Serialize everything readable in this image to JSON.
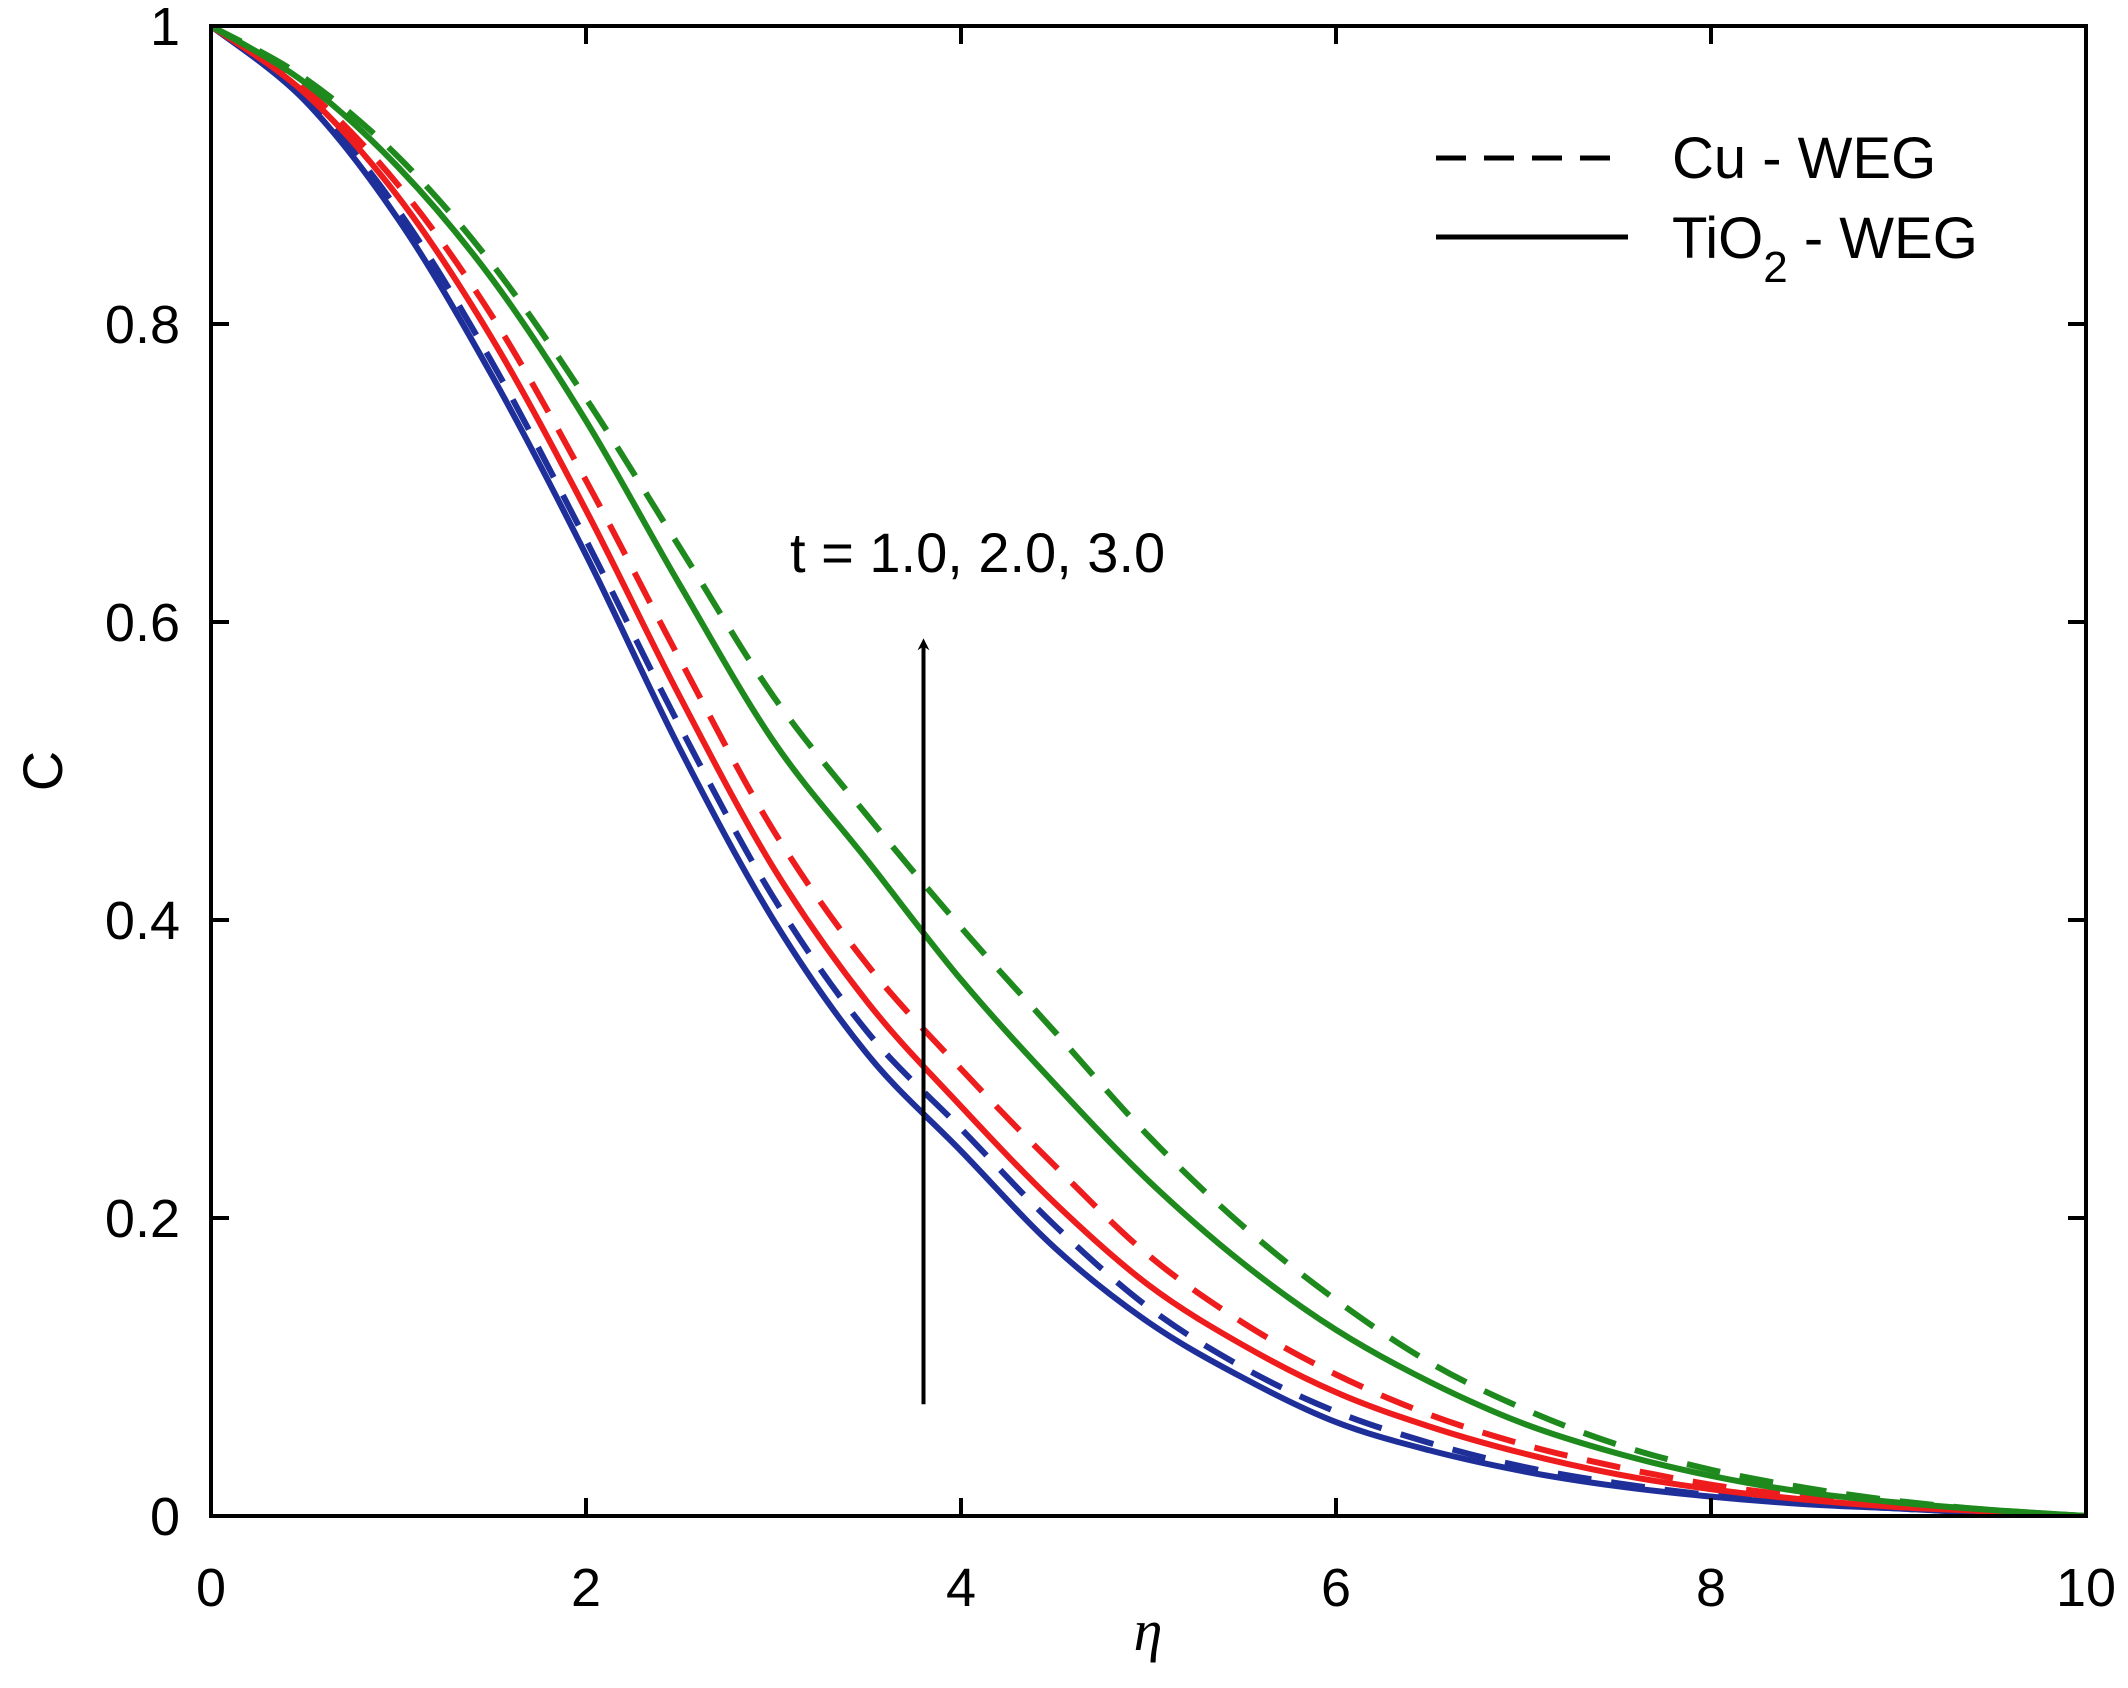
{
  "chart_data": {
    "type": "line",
    "xlabel": "η",
    "ylabel": "C",
    "xlim": [
      0,
      10
    ],
    "ylim": [
      0,
      1
    ],
    "xticks": [
      "0",
      "2",
      "4",
      "6",
      "8",
      "10"
    ],
    "yticks": [
      "0",
      "0.2",
      "0.4",
      "0.6",
      "0.8",
      "1"
    ],
    "grid": false,
    "legend_position": "top-right",
    "legend": [
      {
        "label_main": "Cu - WEG",
        "label_sub": "",
        "label_tail": "",
        "style": "dashed"
      },
      {
        "label_main": "TiO",
        "label_sub": "2",
        "label_tail": " - WEG",
        "style": "solid"
      }
    ],
    "annotation": {
      "text": "t = 1.0, 2.0, 3.0",
      "arrow_x": 3.8,
      "arrow_from_y": 0.075,
      "arrow_to_y": 0.585
    },
    "x": [
      0,
      0.5,
      1,
      1.5,
      2,
      2.5,
      3,
      3.5,
      4,
      4.5,
      5,
      5.5,
      6,
      6.5,
      7,
      7.5,
      8,
      8.5,
      9,
      9.5,
      10
    ],
    "series": [
      {
        "group": "t = 1.0",
        "fluid": "TiO2 - WEG",
        "style": "solid",
        "color": "#1f2f9a",
        "values": [
          1.0,
          0.95,
          0.87,
          0.765,
          0.645,
          0.515,
          0.4,
          0.31,
          0.245,
          0.18,
          0.13,
          0.093,
          0.063,
          0.044,
          0.03,
          0.02,
          0.013,
          0.008,
          0.005,
          0.002,
          0.0
        ]
      },
      {
        "group": "t = 1.0",
        "fluid": "Cu - WEG",
        "style": "dashed",
        "color": "#1f2f9a",
        "values": [
          1.0,
          0.952,
          0.876,
          0.774,
          0.655,
          0.53,
          0.415,
          0.325,
          0.26,
          0.195,
          0.14,
          0.1,
          0.07,
          0.049,
          0.033,
          0.022,
          0.014,
          0.009,
          0.005,
          0.002,
          0.0
        ]
      },
      {
        "group": "t = 2.0",
        "fluid": "TiO2 - WEG",
        "style": "solid",
        "color": "#ee1c1c",
        "values": [
          1.0,
          0.955,
          0.885,
          0.79,
          0.675,
          0.55,
          0.435,
          0.345,
          0.275,
          0.21,
          0.155,
          0.115,
          0.083,
          0.06,
          0.042,
          0.028,
          0.018,
          0.011,
          0.006,
          0.003,
          0.0
        ]
      },
      {
        "group": "t = 2.0",
        "fluid": "Cu - WEG",
        "style": "dashed",
        "color": "#ee1c1c",
        "values": [
          1.0,
          0.958,
          0.893,
          0.805,
          0.695,
          0.575,
          0.46,
          0.37,
          0.3,
          0.235,
          0.175,
          0.13,
          0.095,
          0.068,
          0.048,
          0.033,
          0.021,
          0.013,
          0.007,
          0.003,
          0.0
        ]
      },
      {
        "group": "t = 3.0",
        "fluid": "TiO2 - WEG",
        "style": "solid",
        "color": "#1e8a1e",
        "values": [
          1.0,
          0.962,
          0.905,
          0.83,
          0.735,
          0.625,
          0.52,
          0.44,
          0.36,
          0.29,
          0.225,
          0.17,
          0.125,
          0.09,
          0.062,
          0.042,
          0.027,
          0.016,
          0.009,
          0.004,
          0.0
        ]
      },
      {
        "group": "t = 3.0",
        "fluid": "Cu - WEG",
        "style": "dashed",
        "color": "#1e8a1e",
        "values": [
          1.0,
          0.965,
          0.912,
          0.84,
          0.75,
          0.65,
          0.55,
          0.47,
          0.395,
          0.325,
          0.255,
          0.195,
          0.145,
          0.103,
          0.072,
          0.048,
          0.031,
          0.019,
          0.01,
          0.004,
          0.0
        ]
      }
    ]
  }
}
